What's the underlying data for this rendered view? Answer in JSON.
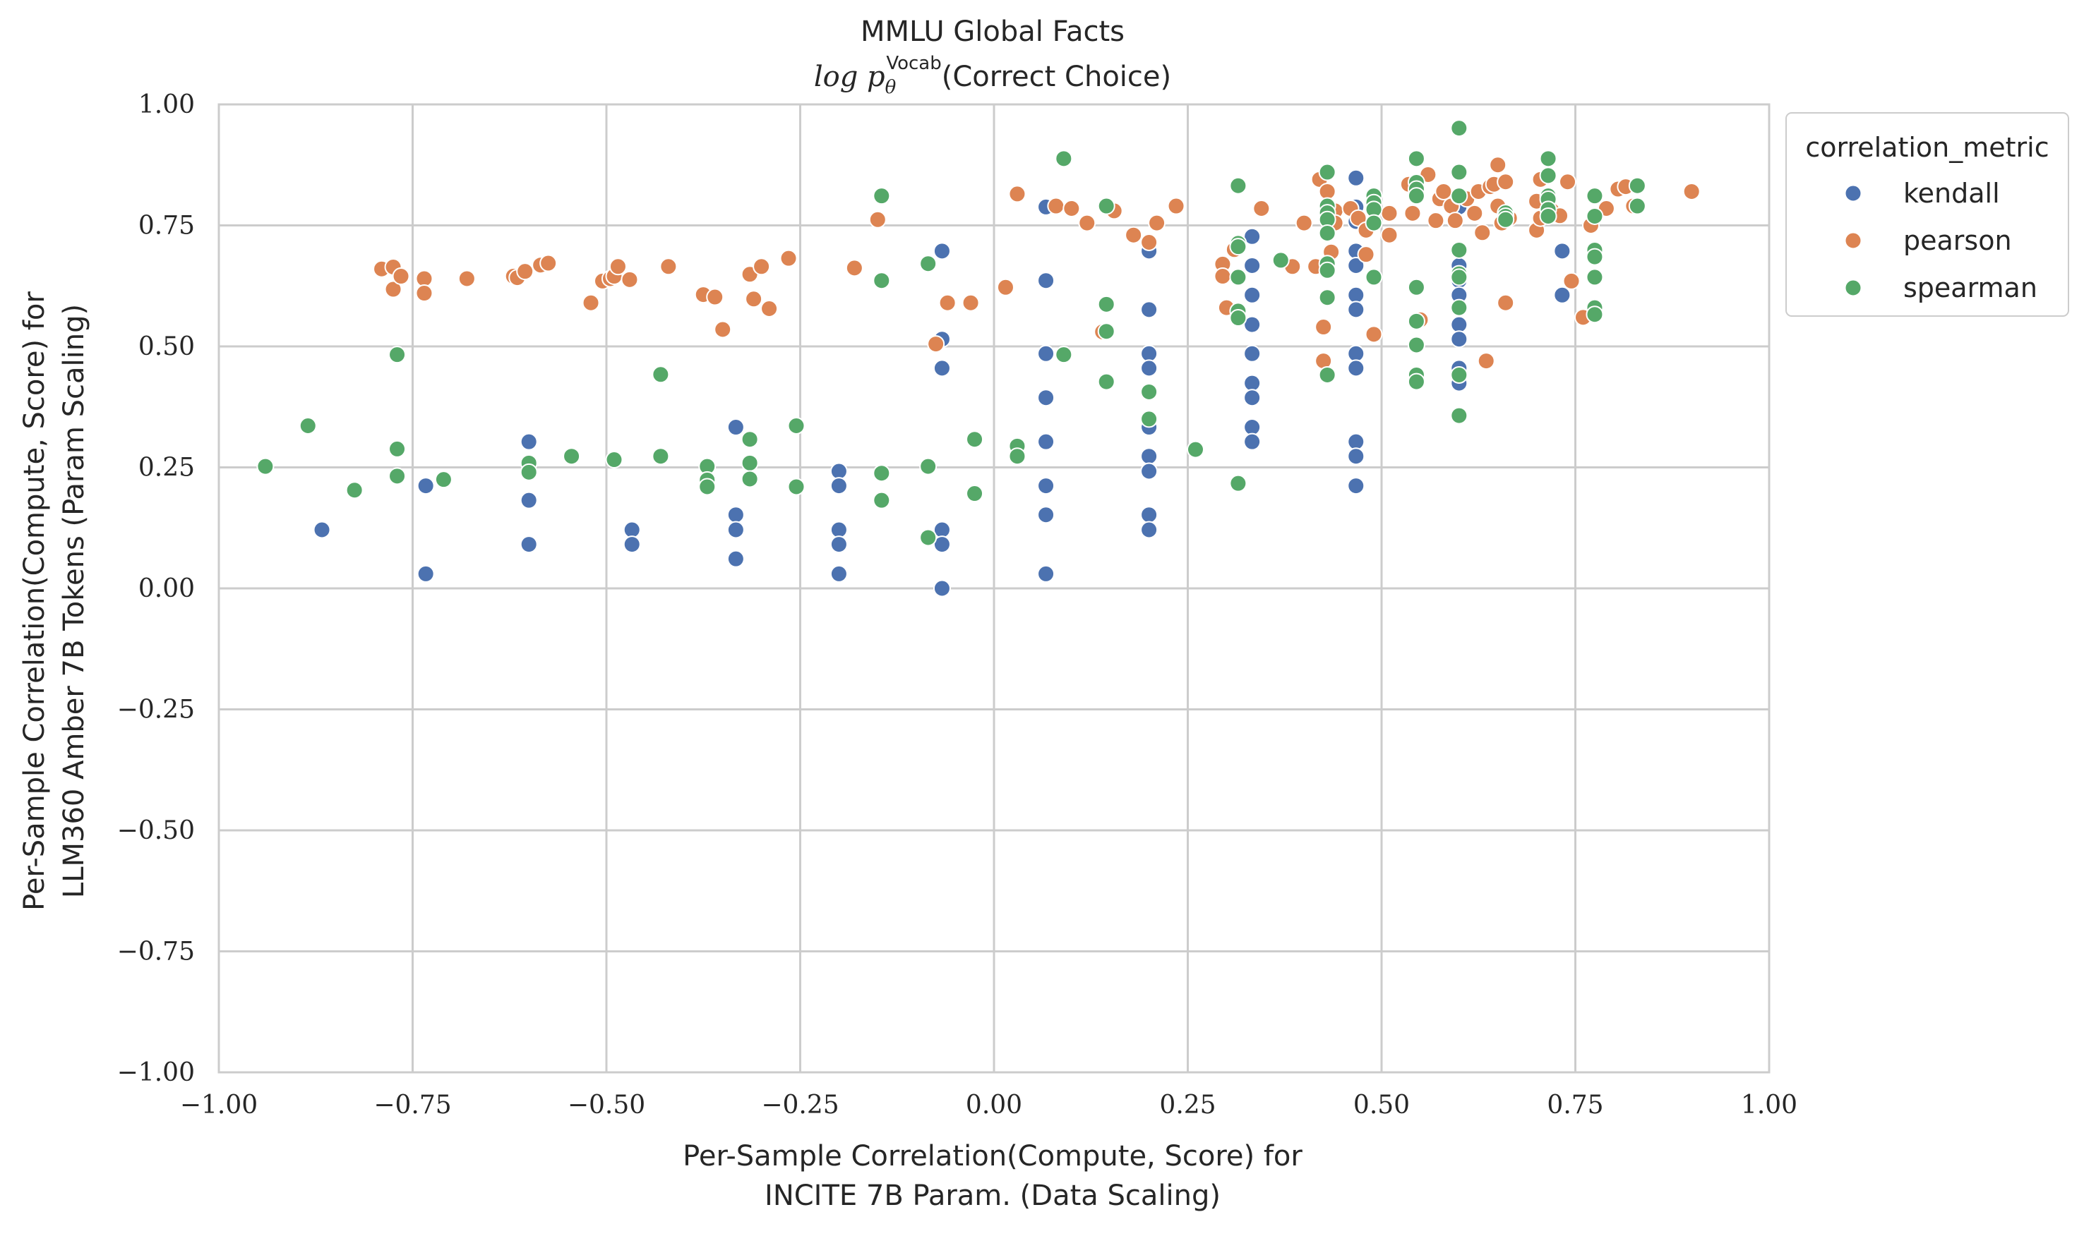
{
  "chart_data": {
    "type": "scatter",
    "title": "MMLU Global Facts",
    "subtitle": "log p_θ^Vocab(Correct Choice)",
    "subtitle_parts": {
      "prefix": "log p",
      "sub": "θ",
      "sup": "Vocab",
      "suffix": "(Correct Choice)"
    },
    "xlabel_lines": [
      "Per-Sample Correlation(Compute, Score) for",
      "INCITE 7B Param. (Data Scaling)"
    ],
    "ylabel_lines": [
      "Per-Sample Correlation(Compute, Score) for",
      "LLM360 Amber 7B Tokens (Param Scaling)"
    ],
    "xlim": [
      -1.0,
      1.0
    ],
    "ylim": [
      -1.0,
      1.0
    ],
    "ticks": [
      -1.0,
      -0.75,
      -0.5,
      -0.25,
      0.0,
      0.25,
      0.5,
      0.75,
      1.0
    ],
    "tick_labels": [
      "−1.00",
      "−0.75",
      "−0.50",
      "−0.25",
      "0.00",
      "0.25",
      "0.50",
      "0.75",
      "1.00"
    ],
    "grid": true,
    "legend": {
      "title": "correlation_metric",
      "placement": "outside-top-right"
    },
    "series": [
      {
        "name": "kendall",
        "color": "#4c72b0",
        "points": [
          [
            -0.867,
            0.121
          ],
          [
            -0.733,
            0.212
          ],
          [
            -0.733,
            0.03
          ],
          [
            -0.6,
            0.303
          ],
          [
            -0.6,
            0.182
          ],
          [
            -0.6,
            0.091
          ],
          [
            -0.467,
            0.121
          ],
          [
            -0.467,
            0.091
          ],
          [
            -0.333,
            0.333
          ],
          [
            -0.333,
            0.152
          ],
          [
            -0.333,
            0.121
          ],
          [
            -0.333,
            0.061
          ],
          [
            -0.2,
            0.242
          ],
          [
            -0.2,
            0.212
          ],
          [
            -0.2,
            0.121
          ],
          [
            -0.2,
            0.091
          ],
          [
            -0.2,
            0.03
          ],
          [
            -0.067,
            0.697
          ],
          [
            -0.067,
            0.515
          ],
          [
            -0.067,
            0.455
          ],
          [
            -0.067,
            0.121
          ],
          [
            -0.067,
            0.091
          ],
          [
            -0.067,
            0.0
          ],
          [
            0.067,
            0.788
          ],
          [
            0.067,
            0.636
          ],
          [
            0.067,
            0.485
          ],
          [
            0.067,
            0.394
          ],
          [
            0.067,
            0.303
          ],
          [
            0.067,
            0.212
          ],
          [
            0.067,
            0.152
          ],
          [
            0.067,
            0.03
          ],
          [
            0.2,
            0.697
          ],
          [
            0.2,
            0.576
          ],
          [
            0.2,
            0.485
          ],
          [
            0.2,
            0.455
          ],
          [
            0.2,
            0.333
          ],
          [
            0.2,
            0.273
          ],
          [
            0.2,
            0.242
          ],
          [
            0.2,
            0.152
          ],
          [
            0.2,
            0.121
          ],
          [
            0.333,
            0.727
          ],
          [
            0.333,
            0.667
          ],
          [
            0.333,
            0.606
          ],
          [
            0.333,
            0.545
          ],
          [
            0.333,
            0.485
          ],
          [
            0.333,
            0.424
          ],
          [
            0.333,
            0.394
          ],
          [
            0.333,
            0.333
          ],
          [
            0.333,
            0.303
          ],
          [
            0.467,
            0.848
          ],
          [
            0.467,
            0.788
          ],
          [
            0.467,
            0.758
          ],
          [
            0.467,
            0.697
          ],
          [
            0.467,
            0.667
          ],
          [
            0.467,
            0.606
          ],
          [
            0.467,
            0.576
          ],
          [
            0.467,
            0.485
          ],
          [
            0.467,
            0.455
          ],
          [
            0.467,
            0.303
          ],
          [
            0.467,
            0.273
          ],
          [
            0.467,
            0.212
          ],
          [
            0.6,
            0.788
          ],
          [
            0.6,
            0.667
          ],
          [
            0.6,
            0.636
          ],
          [
            0.6,
            0.606
          ],
          [
            0.6,
            0.545
          ],
          [
            0.6,
            0.515
          ],
          [
            0.6,
            0.455
          ],
          [
            0.6,
            0.424
          ],
          [
            0.733,
            0.697
          ],
          [
            0.733,
            0.606
          ]
        ]
      },
      {
        "name": "pearson",
        "color": "#dd8452",
        "points": [
          [
            -0.79,
            0.66
          ],
          [
            -0.775,
            0.664
          ],
          [
            -0.775,
            0.618
          ],
          [
            -0.765,
            0.645
          ],
          [
            -0.735,
            0.64
          ],
          [
            -0.735,
            0.61
          ],
          [
            -0.68,
            0.64
          ],
          [
            -0.62,
            0.645
          ],
          [
            -0.615,
            0.642
          ],
          [
            -0.605,
            0.655
          ],
          [
            -0.585,
            0.668
          ],
          [
            -0.575,
            0.672
          ],
          [
            -0.52,
            0.59
          ],
          [
            -0.505,
            0.635
          ],
          [
            -0.495,
            0.64
          ],
          [
            -0.49,
            0.645
          ],
          [
            -0.485,
            0.665
          ],
          [
            -0.47,
            0.638
          ],
          [
            -0.42,
            0.665
          ],
          [
            -0.375,
            0.607
          ],
          [
            -0.36,
            0.602
          ],
          [
            -0.35,
            0.535
          ],
          [
            -0.315,
            0.649
          ],
          [
            -0.31,
            0.598
          ],
          [
            -0.3,
            0.665
          ],
          [
            -0.29,
            0.578
          ],
          [
            -0.265,
            0.682
          ],
          [
            -0.18,
            0.662
          ],
          [
            -0.15,
            0.762
          ],
          [
            -0.075,
            0.505
          ],
          [
            -0.06,
            0.59
          ],
          [
            -0.03,
            0.59
          ],
          [
            0.015,
            0.622
          ],
          [
            0.03,
            0.815
          ],
          [
            0.08,
            0.79
          ],
          [
            0.1,
            0.785
          ],
          [
            0.12,
            0.755
          ],
          [
            0.14,
            0.53
          ],
          [
            0.155,
            0.78
          ],
          [
            0.18,
            0.73
          ],
          [
            0.2,
            0.715
          ],
          [
            0.21,
            0.755
          ],
          [
            0.235,
            0.79
          ],
          [
            0.295,
            0.67
          ],
          [
            0.295,
            0.645
          ],
          [
            0.3,
            0.58
          ],
          [
            0.31,
            0.7
          ],
          [
            0.345,
            0.785
          ],
          [
            0.385,
            0.665
          ],
          [
            0.4,
            0.755
          ],
          [
            0.415,
            0.665
          ],
          [
            0.42,
            0.845
          ],
          [
            0.425,
            0.54
          ],
          [
            0.425,
            0.47
          ],
          [
            0.43,
            0.82
          ],
          [
            0.435,
            0.695
          ],
          [
            0.44,
            0.78
          ],
          [
            0.44,
            0.755
          ],
          [
            0.46,
            0.785
          ],
          [
            0.47,
            0.765
          ],
          [
            0.48,
            0.74
          ],
          [
            0.48,
            0.69
          ],
          [
            0.49,
            0.525
          ],
          [
            0.51,
            0.775
          ],
          [
            0.51,
            0.73
          ],
          [
            0.535,
            0.835
          ],
          [
            0.54,
            0.775
          ],
          [
            0.545,
            0.815
          ],
          [
            0.55,
            0.555
          ],
          [
            0.56,
            0.855
          ],
          [
            0.57,
            0.76
          ],
          [
            0.575,
            0.805
          ],
          [
            0.58,
            0.82
          ],
          [
            0.59,
            0.79
          ],
          [
            0.595,
            0.76
          ],
          [
            0.6,
            0.81
          ],
          [
            0.61,
            0.805
          ],
          [
            0.62,
            0.775
          ],
          [
            0.625,
            0.82
          ],
          [
            0.63,
            0.735
          ],
          [
            0.635,
            0.47
          ],
          [
            0.64,
            0.83
          ],
          [
            0.645,
            0.835
          ],
          [
            0.65,
            0.875
          ],
          [
            0.65,
            0.79
          ],
          [
            0.655,
            0.755
          ],
          [
            0.66,
            0.84
          ],
          [
            0.66,
            0.59
          ],
          [
            0.665,
            0.765
          ],
          [
            0.7,
            0.8
          ],
          [
            0.7,
            0.74
          ],
          [
            0.705,
            0.845
          ],
          [
            0.705,
            0.765
          ],
          [
            0.72,
            0.78
          ],
          [
            0.73,
            0.77
          ],
          [
            0.74,
            0.84
          ],
          [
            0.745,
            0.635
          ],
          [
            0.76,
            0.56
          ],
          [
            0.77,
            0.75
          ],
          [
            0.79,
            0.785
          ],
          [
            0.805,
            0.825
          ],
          [
            0.815,
            0.83
          ],
          [
            0.825,
            0.79
          ],
          [
            0.9,
            0.82
          ]
        ]
      },
      {
        "name": "spearman",
        "color": "#55a868",
        "points": [
          [
            -0.94,
            0.252
          ],
          [
            -0.885,
            0.336
          ],
          [
            -0.825,
            0.203
          ],
          [
            -0.77,
            0.483
          ],
          [
            -0.77,
            0.288
          ],
          [
            -0.77,
            0.232
          ],
          [
            -0.71,
            0.225
          ],
          [
            -0.6,
            0.259
          ],
          [
            -0.6,
            0.24
          ],
          [
            -0.545,
            0.273
          ],
          [
            -0.49,
            0.266
          ],
          [
            -0.43,
            0.442
          ],
          [
            -0.43,
            0.273
          ],
          [
            -0.37,
            0.252
          ],
          [
            -0.37,
            0.224
          ],
          [
            -0.37,
            0.21
          ],
          [
            -0.315,
            0.308
          ],
          [
            -0.315,
            0.259
          ],
          [
            -0.315,
            0.226
          ],
          [
            -0.255,
            0.336
          ],
          [
            -0.255,
            0.21
          ],
          [
            -0.145,
            0.811
          ],
          [
            -0.145,
            0.636
          ],
          [
            -0.145,
            0.238
          ],
          [
            -0.145,
            0.182
          ],
          [
            -0.085,
            0.671
          ],
          [
            -0.085,
            0.252
          ],
          [
            -0.085,
            0.105
          ],
          [
            -0.025,
            0.308
          ],
          [
            -0.025,
            0.196
          ],
          [
            0.03,
            0.294
          ],
          [
            0.03,
            0.273
          ],
          [
            0.09,
            0.888
          ],
          [
            0.09,
            0.483
          ],
          [
            0.145,
            0.79
          ],
          [
            0.145,
            0.587
          ],
          [
            0.145,
            0.531
          ],
          [
            0.145,
            0.427
          ],
          [
            0.2,
            0.406
          ],
          [
            0.2,
            0.35
          ],
          [
            0.26,
            0.287
          ],
          [
            0.315,
            0.832
          ],
          [
            0.315,
            0.713
          ],
          [
            0.315,
            0.706
          ],
          [
            0.315,
            0.643
          ],
          [
            0.315,
            0.573
          ],
          [
            0.315,
            0.559
          ],
          [
            0.315,
            0.217
          ],
          [
            0.37,
            0.678
          ],
          [
            0.43,
            0.86
          ],
          [
            0.43,
            0.79
          ],
          [
            0.43,
            0.776
          ],
          [
            0.43,
            0.762
          ],
          [
            0.43,
            0.734
          ],
          [
            0.43,
            0.671
          ],
          [
            0.43,
            0.657
          ],
          [
            0.43,
            0.601
          ],
          [
            0.43,
            0.441
          ],
          [
            0.49,
            0.811
          ],
          [
            0.49,
            0.797
          ],
          [
            0.49,
            0.783
          ],
          [
            0.49,
            0.755
          ],
          [
            0.49,
            0.643
          ],
          [
            0.545,
            0.888
          ],
          [
            0.545,
            0.839
          ],
          [
            0.545,
            0.825
          ],
          [
            0.545,
            0.811
          ],
          [
            0.545,
            0.622
          ],
          [
            0.545,
            0.552
          ],
          [
            0.545,
            0.503
          ],
          [
            0.545,
            0.441
          ],
          [
            0.545,
            0.427
          ],
          [
            0.6,
            0.951
          ],
          [
            0.6,
            0.86
          ],
          [
            0.6,
            0.811
          ],
          [
            0.6,
            0.699
          ],
          [
            0.6,
            0.65
          ],
          [
            0.6,
            0.643
          ],
          [
            0.6,
            0.58
          ],
          [
            0.6,
            0.441
          ],
          [
            0.6,
            0.357
          ],
          [
            0.66,
            0.776
          ],
          [
            0.66,
            0.769
          ],
          [
            0.66,
            0.762
          ],
          [
            0.715,
            0.888
          ],
          [
            0.715,
            0.853
          ],
          [
            0.715,
            0.811
          ],
          [
            0.715,
            0.804
          ],
          [
            0.715,
            0.783
          ],
          [
            0.715,
            0.769
          ],
          [
            0.775,
            0.811
          ],
          [
            0.775,
            0.769
          ],
          [
            0.775,
            0.699
          ],
          [
            0.775,
            0.685
          ],
          [
            0.775,
            0.643
          ],
          [
            0.775,
            0.58
          ],
          [
            0.775,
            0.566
          ],
          [
            0.83,
            0.832
          ],
          [
            0.83,
            0.79
          ]
        ]
      }
    ]
  }
}
